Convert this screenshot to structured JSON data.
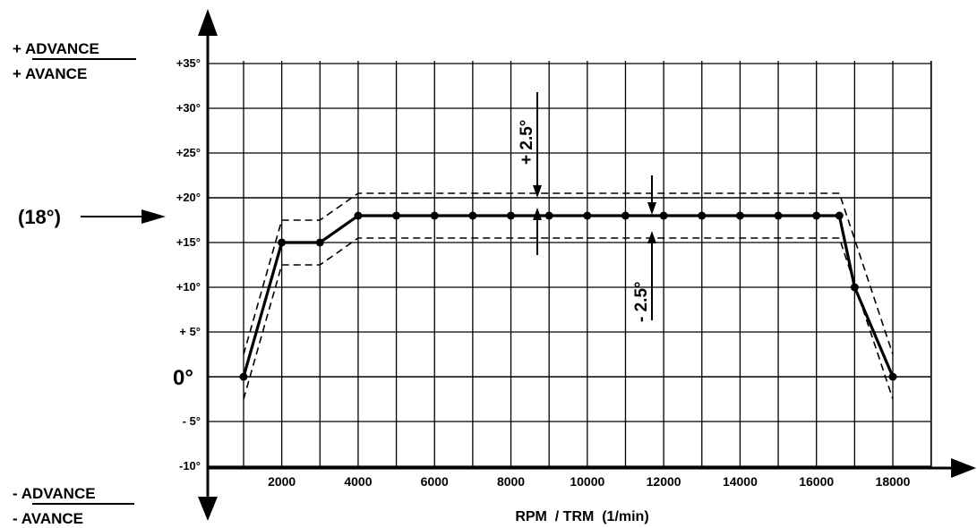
{
  "chart_data": {
    "type": "line",
    "title": "",
    "xlabel": "RPM  / TRM  (1/min)",
    "x_ticks": [
      {
        "value": 2000,
        "label": "2000"
      },
      {
        "value": 4000,
        "label": "4000"
      },
      {
        "value": 6000,
        "label": "6000"
      },
      {
        "value": 8000,
        "label": "8000"
      },
      {
        "value": 10000,
        "label": "10000"
      },
      {
        "value": 12000,
        "label": "12000"
      },
      {
        "value": 14000,
        "label": "14000"
      },
      {
        "value": 16000,
        "label": "16000"
      },
      {
        "value": 18000,
        "label": "18000"
      }
    ],
    "y_ticks": [
      {
        "value": 35,
        "label": "+35°"
      },
      {
        "value": 30,
        "label": "+30°"
      },
      {
        "value": 25,
        "label": "+25°"
      },
      {
        "value": 20,
        "label": "+20°"
      },
      {
        "value": 15,
        "label": "+15°"
      },
      {
        "value": 10,
        "label": "+10°"
      },
      {
        "value": 5,
        "label": "+ 5°"
      },
      {
        "value": 0,
        "label": "0°"
      },
      {
        "value": -5,
        "label": "- 5°"
      },
      {
        "value": -10,
        "label": "-10°"
      }
    ],
    "xlim": [
      0,
      18000
    ],
    "ylim": [
      -10,
      35
    ],
    "grid": true,
    "series": [
      {
        "x": [
          1000,
          2000,
          3000,
          4000,
          5000,
          6000,
          7000,
          8000,
          9000,
          10000,
          11000,
          12000,
          13000,
          14000,
          15000,
          16000,
          16600,
          17000,
          18000
        ],
        "y": [
          0,
          15,
          15,
          18,
          18,
          18,
          18,
          18,
          18,
          18,
          18,
          18,
          18,
          18,
          18,
          18,
          18,
          10,
          0
        ]
      }
    ],
    "tolerance": {
      "upper": {
        "x": [
          1000,
          2000,
          3000,
          4000,
          16600,
          18000
        ],
        "y": [
          2.5,
          17.5,
          17.5,
          20.5,
          20.5,
          2.5
        ]
      },
      "lower": {
        "x": [
          1000,
          2000,
          3000,
          4000,
          16600,
          18000
        ],
        "y": [
          -2.5,
          12.5,
          12.5,
          15.5,
          15.5,
          -2.5
        ]
      }
    },
    "annotations": {
      "plus_tol": "+ 2.5°",
      "minus_tol": "- 2.5°",
      "reference": "(18°)",
      "top_advance_1": "+ ADVANCE",
      "top_advance_2": "+ AVANCE",
      "bottom_advance_1": "- ADVANCE",
      "bottom_advance_2": "- AVANCE"
    }
  }
}
